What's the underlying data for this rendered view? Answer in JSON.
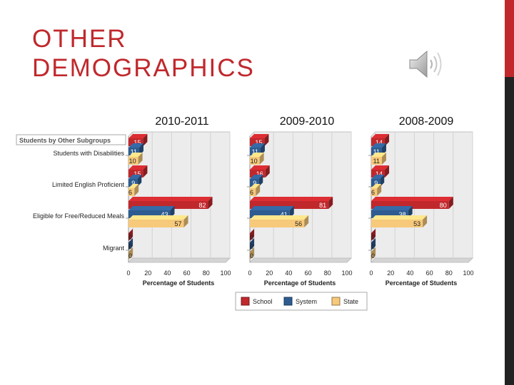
{
  "slide": {
    "title_line1": "OTHER",
    "title_line2": "DEMOGRAPHICS",
    "speaker_icon": "speaker-icon",
    "accent_color": "#c0282c"
  },
  "chart_data": [
    {
      "type": "bar",
      "orientation": "horizontal",
      "title": "2010-2011",
      "panel_title": "Students by Other Subgroups",
      "categories": [
        "Students with Disabilities",
        "Limited English Proficient",
        "Eligible for Free/Reduced Meals",
        "Migrant"
      ],
      "series": [
        {
          "name": "School",
          "values": [
            15,
            15,
            82,
            0
          ]
        },
        {
          "name": "System",
          "values": [
            11,
            9,
            43,
            0
          ]
        },
        {
          "name": "State",
          "values": [
            10,
            6,
            57,
            0
          ]
        }
      ],
      "xlabel": "Percentage of Students",
      "xlim": [
        0,
        100
      ],
      "xticks": [
        "0",
        "20",
        "40",
        "60",
        "80",
        "100"
      ]
    },
    {
      "type": "bar",
      "orientation": "horizontal",
      "title": "2009-2010",
      "categories": [
        "Students with Disabilities",
        "Limited English Proficient",
        "Eligible for Free/Reduced Meals",
        "Migrant"
      ],
      "series": [
        {
          "name": "School",
          "values": [
            15,
            16,
            81,
            0
          ]
        },
        {
          "name": "System",
          "values": [
            11,
            9,
            41,
            0
          ]
        },
        {
          "name": "State",
          "values": [
            10,
            6,
            56,
            0
          ]
        }
      ],
      "xlabel": "Percentage of Students",
      "xlim": [
        0,
        100
      ],
      "xticks": [
        "0",
        "20",
        "40",
        "60",
        "80",
        "100"
      ]
    },
    {
      "type": "bar",
      "orientation": "horizontal",
      "title": "2008-2009",
      "categories": [
        "Students with Disabilities",
        "Limited English Proficient",
        "Eligible for Free/Reduced Meals",
        "Migrant"
      ],
      "series": [
        {
          "name": "School",
          "values": [
            14,
            14,
            80,
            0
          ]
        },
        {
          "name": "System",
          "values": [
            11,
            9,
            38,
            0
          ]
        },
        {
          "name": "State",
          "values": [
            11,
            6,
            53,
            0
          ]
        }
      ],
      "xlabel": "Percentage of Students",
      "xlim": [
        0,
        100
      ],
      "xticks": [
        "0",
        "20",
        "40",
        "60",
        "80",
        "100"
      ]
    }
  ],
  "legend": [
    {
      "name": "School",
      "color": "#c0282c"
    },
    {
      "name": "System",
      "color": "#2e5c91"
    },
    {
      "name": "State",
      "color": "#f7c97a"
    }
  ],
  "colors": {
    "school": "#c0282c",
    "system": "#2e5c91",
    "state": "#f7c97a"
  }
}
